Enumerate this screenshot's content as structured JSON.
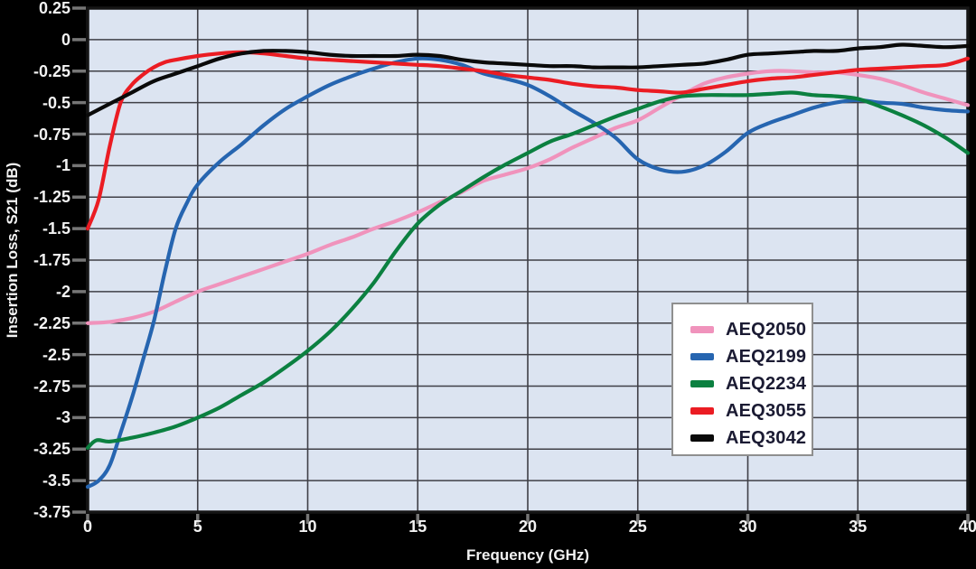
{
  "colors": {
    "background": "#000000",
    "plot_background": "#dce4f1",
    "grid": "#3f3f46",
    "frame": "#151515",
    "tick": "#767676",
    "tick_label": "#f2f2f2",
    "legend_background": "#ffffff",
    "legend_border": "#8f8f8f",
    "legend_text": "#1b1b33"
  },
  "chart_data": {
    "type": "line",
    "title": "",
    "xlabel": "Frequency (GHz)",
    "ylabel": "Insertion Loss, S21 (dB)",
    "xlim": [
      0,
      40
    ],
    "ylim": [
      -3.75,
      0.25
    ],
    "grid": true,
    "legend_position": "inside-lower-right",
    "xticks": [
      0,
      5,
      10,
      15,
      20,
      25,
      30,
      35,
      40
    ],
    "xtick_labels": [
      "0",
      "5",
      "10",
      "15",
      "20",
      "25",
      "30",
      "35",
      "40"
    ],
    "ytick_values": [
      0.25,
      0,
      -0.25,
      -0.5,
      -0.75,
      -1,
      -1.25,
      -1.5,
      -1.75,
      -2,
      -2.25,
      -2.5,
      -2.75,
      -3,
      -3.25,
      -3.5,
      -3.75
    ],
    "ytick_labels": [
      "0.25",
      "0",
      "-0.25",
      "-0.5",
      "-0.75",
      "-1",
      "-1.25",
      "-1.5",
      "-1.75",
      "-2",
      "-2.25",
      "-2.5",
      "-2.75",
      "-3",
      "-3.25",
      "-3.5",
      "-3.75"
    ],
    "series": [
      {
        "name": "AEQ2050",
        "color": "#f093bc",
        "points": [
          [
            0,
            -2.25
          ],
          [
            1,
            -2.24
          ],
          [
            2,
            -2.21
          ],
          [
            3,
            -2.16
          ],
          [
            4,
            -2.08
          ],
          [
            5,
            -2.0
          ],
          [
            6,
            -1.94
          ],
          [
            7,
            -1.88
          ],
          [
            8,
            -1.82
          ],
          [
            9,
            -1.76
          ],
          [
            10,
            -1.7
          ],
          [
            11,
            -1.63
          ],
          [
            12,
            -1.57
          ],
          [
            13,
            -1.5
          ],
          [
            14,
            -1.44
          ],
          [
            15,
            -1.37
          ],
          [
            16,
            -1.29
          ],
          [
            17,
            -1.21
          ],
          [
            18,
            -1.12
          ],
          [
            19,
            -1.07
          ],
          [
            20,
            -1.02
          ],
          [
            21,
            -0.95
          ],
          [
            22,
            -0.86
          ],
          [
            23,
            -0.78
          ],
          [
            24,
            -0.7
          ],
          [
            25,
            -0.64
          ],
          [
            26,
            -0.54
          ],
          [
            27,
            -0.44
          ],
          [
            28,
            -0.35
          ],
          [
            29,
            -0.3
          ],
          [
            30,
            -0.27
          ],
          [
            31,
            -0.25
          ],
          [
            32,
            -0.25
          ],
          [
            33,
            -0.26
          ],
          [
            34,
            -0.26
          ],
          [
            35,
            -0.28
          ],
          [
            36,
            -0.31
          ],
          [
            37,
            -0.36
          ],
          [
            38,
            -0.42
          ],
          [
            39,
            -0.47
          ],
          [
            40,
            -0.52
          ]
        ]
      },
      {
        "name": "AEQ2199",
        "color": "#2665b0",
        "points": [
          [
            0,
            -3.55
          ],
          [
            0.5,
            -3.5
          ],
          [
            1,
            -3.38
          ],
          [
            1.5,
            -3.12
          ],
          [
            2,
            -2.85
          ],
          [
            2.5,
            -2.55
          ],
          [
            3,
            -2.24
          ],
          [
            3.5,
            -1.85
          ],
          [
            4,
            -1.5
          ],
          [
            4.5,
            -1.3
          ],
          [
            5,
            -1.15
          ],
          [
            6,
            -0.97
          ],
          [
            7,
            -0.83
          ],
          [
            8,
            -0.68
          ],
          [
            9,
            -0.55
          ],
          [
            10,
            -0.45
          ],
          [
            11,
            -0.36
          ],
          [
            12,
            -0.29
          ],
          [
            13,
            -0.23
          ],
          [
            14,
            -0.18
          ],
          [
            15,
            -0.15
          ],
          [
            16,
            -0.16
          ],
          [
            17,
            -0.2
          ],
          [
            18,
            -0.27
          ],
          [
            19,
            -0.31
          ],
          [
            20,
            -0.36
          ],
          [
            21,
            -0.45
          ],
          [
            22,
            -0.56
          ],
          [
            23,
            -0.66
          ],
          [
            24,
            -0.78
          ],
          [
            25,
            -0.95
          ],
          [
            26,
            -1.03
          ],
          [
            27,
            -1.05
          ],
          [
            28,
            -1.0
          ],
          [
            29,
            -0.89
          ],
          [
            30,
            -0.74
          ],
          [
            31,
            -0.66
          ],
          [
            32,
            -0.6
          ],
          [
            33,
            -0.54
          ],
          [
            34,
            -0.5
          ],
          [
            35,
            -0.48
          ],
          [
            36,
            -0.5
          ],
          [
            37,
            -0.51
          ],
          [
            38,
            -0.54
          ],
          [
            39,
            -0.56
          ],
          [
            40,
            -0.57
          ]
        ]
      },
      {
        "name": "AEQ2234",
        "color": "#0b8040",
        "points": [
          [
            0,
            -3.24
          ],
          [
            0.4,
            -3.18
          ],
          [
            1,
            -3.19
          ],
          [
            2,
            -3.16
          ],
          [
            3,
            -3.12
          ],
          [
            4,
            -3.07
          ],
          [
            5,
            -3.0
          ],
          [
            6,
            -2.92
          ],
          [
            7,
            -2.82
          ],
          [
            8,
            -2.72
          ],
          [
            9,
            -2.6
          ],
          [
            10,
            -2.47
          ],
          [
            11,
            -2.32
          ],
          [
            12,
            -2.14
          ],
          [
            13,
            -1.93
          ],
          [
            14,
            -1.68
          ],
          [
            15,
            -1.46
          ],
          [
            16,
            -1.31
          ],
          [
            17,
            -1.2
          ],
          [
            18,
            -1.09
          ],
          [
            19,
            -0.99
          ],
          [
            20,
            -0.9
          ],
          [
            21,
            -0.81
          ],
          [
            22,
            -0.75
          ],
          [
            23,
            -0.68
          ],
          [
            24,
            -0.61
          ],
          [
            25,
            -0.55
          ],
          [
            26,
            -0.49
          ],
          [
            27,
            -0.45
          ],
          [
            28,
            -0.44
          ],
          [
            29,
            -0.44
          ],
          [
            30,
            -0.44
          ],
          [
            31,
            -0.43
          ],
          [
            32,
            -0.42
          ],
          [
            33,
            -0.44
          ],
          [
            34,
            -0.45
          ],
          [
            35,
            -0.47
          ],
          [
            36,
            -0.53
          ],
          [
            37,
            -0.6
          ],
          [
            38,
            -0.68
          ],
          [
            39,
            -0.78
          ],
          [
            40,
            -0.9
          ]
        ]
      },
      {
        "name": "AEQ3055",
        "color": "#eb1c23",
        "points": [
          [
            0,
            -1.5
          ],
          [
            0.5,
            -1.27
          ],
          [
            1,
            -0.85
          ],
          [
            1.5,
            -0.5
          ],
          [
            2,
            -0.36
          ],
          [
            2.5,
            -0.28
          ],
          [
            3,
            -0.22
          ],
          [
            3.5,
            -0.18
          ],
          [
            4,
            -0.16
          ],
          [
            5,
            -0.13
          ],
          [
            6,
            -0.11
          ],
          [
            7,
            -0.1
          ],
          [
            8,
            -0.11
          ],
          [
            9,
            -0.13
          ],
          [
            10,
            -0.15
          ],
          [
            11,
            -0.16
          ],
          [
            12,
            -0.17
          ],
          [
            13,
            -0.18
          ],
          [
            14,
            -0.19
          ],
          [
            15,
            -0.2
          ],
          [
            16,
            -0.21
          ],
          [
            17,
            -0.23
          ],
          [
            18,
            -0.25
          ],
          [
            19,
            -0.28
          ],
          [
            20,
            -0.3
          ],
          [
            21,
            -0.32
          ],
          [
            22,
            -0.35
          ],
          [
            23,
            -0.37
          ],
          [
            24,
            -0.38
          ],
          [
            25,
            -0.4
          ],
          [
            26,
            -0.41
          ],
          [
            27,
            -0.42
          ],
          [
            28,
            -0.39
          ],
          [
            29,
            -0.36
          ],
          [
            30,
            -0.33
          ],
          [
            31,
            -0.31
          ],
          [
            32,
            -0.3
          ],
          [
            33,
            -0.28
          ],
          [
            34,
            -0.26
          ],
          [
            35,
            -0.24
          ],
          [
            36,
            -0.23
          ],
          [
            37,
            -0.22
          ],
          [
            38,
            -0.21
          ],
          [
            39,
            -0.2
          ],
          [
            40,
            -0.15
          ]
        ]
      },
      {
        "name": "AEQ3042",
        "color": "#0a0a0a",
        "points": [
          [
            0,
            -0.6
          ],
          [
            1,
            -0.51
          ],
          [
            2,
            -0.42
          ],
          [
            3,
            -0.33
          ],
          [
            4,
            -0.27
          ],
          [
            5,
            -0.21
          ],
          [
            6,
            -0.15
          ],
          [
            7,
            -0.11
          ],
          [
            8,
            -0.09
          ],
          [
            9,
            -0.09
          ],
          [
            10,
            -0.1
          ],
          [
            11,
            -0.12
          ],
          [
            12,
            -0.13
          ],
          [
            13,
            -0.13
          ],
          [
            14,
            -0.13
          ],
          [
            15,
            -0.12
          ],
          [
            16,
            -0.13
          ],
          [
            17,
            -0.16
          ],
          [
            18,
            -0.18
          ],
          [
            19,
            -0.19
          ],
          [
            20,
            -0.2
          ],
          [
            21,
            -0.21
          ],
          [
            22,
            -0.21
          ],
          [
            23,
            -0.22
          ],
          [
            24,
            -0.22
          ],
          [
            25,
            -0.22
          ],
          [
            26,
            -0.21
          ],
          [
            27,
            -0.2
          ],
          [
            28,
            -0.19
          ],
          [
            29,
            -0.16
          ],
          [
            30,
            -0.12
          ],
          [
            31,
            -0.11
          ],
          [
            32,
            -0.1
          ],
          [
            33,
            -0.09
          ],
          [
            34,
            -0.09
          ],
          [
            35,
            -0.07
          ],
          [
            36,
            -0.06
          ],
          [
            37,
            -0.04
          ],
          [
            38,
            -0.05
          ],
          [
            39,
            -0.06
          ],
          [
            40,
            -0.05
          ]
        ]
      }
    ]
  }
}
